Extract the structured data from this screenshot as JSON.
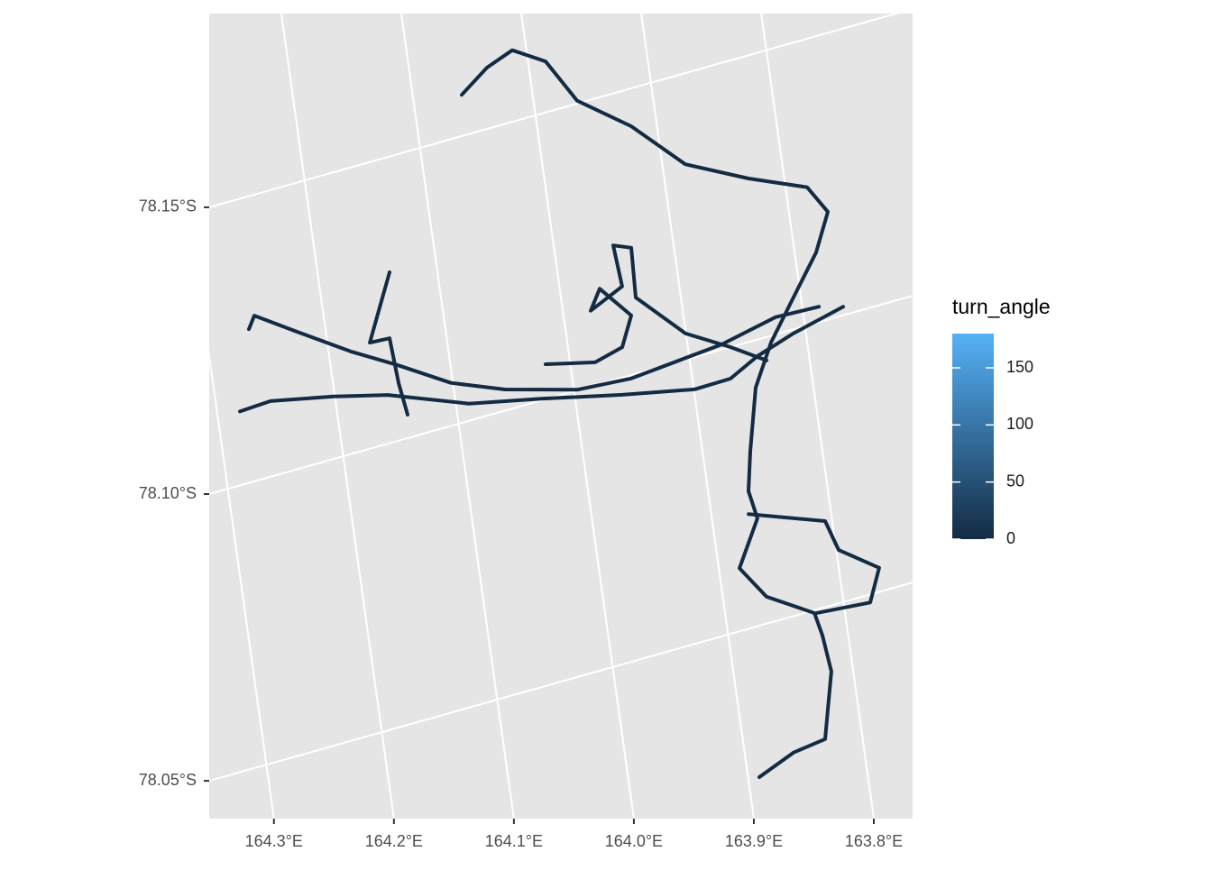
{
  "chart_data": {
    "type": "track",
    "panel_color": "#e5e5e5",
    "grid": true,
    "xticks": [
      {
        "value": 164.3,
        "label": "164.3°E"
      },
      {
        "value": 164.2,
        "label": "164.2°E"
      },
      {
        "value": 164.1,
        "label": "164.1°E"
      },
      {
        "value": 164.0,
        "label": "164.0°E"
      },
      {
        "value": 163.9,
        "label": "163.9°E"
      },
      {
        "value": 163.8,
        "label": "163.8°E"
      }
    ],
    "yticks": [
      {
        "value": -78.15,
        "label": "78.15°S"
      },
      {
        "value": -78.1,
        "label": "78.10°S"
      },
      {
        "value": -78.05,
        "label": "78.05°S"
      }
    ],
    "series": [
      {
        "color": "#132B43",
        "x": [
          164.0591,
          164.0349,
          164.0118,
          163.9853,
          163.9636,
          163.9215,
          163.8808,
          163.8298,
          163.782,
          163.7676,
          163.7821,
          163.8061,
          163.8302,
          163.8482,
          163.8601,
          163.8663,
          163.862,
          163.8828,
          163.8636,
          163.8256,
          163.8215,
          163.8182,
          163.8313,
          163.8592,
          163.8906
        ],
        "y": [
          -78.1572,
          -78.1607,
          -78.1625,
          -78.1589,
          -78.1505,
          -78.1434,
          -78.1341,
          -78.1285,
          -78.1241,
          -78.1188,
          -78.1123,
          -78.1056,
          -78.0988,
          -78.0917,
          -78.0809,
          -78.074,
          -78.0688,
          -78.061,
          -78.0547,
          -78.0495,
          -78.0452,
          -78.0385,
          -78.027,
          -78.0262,
          -78.0236
        ]
      },
      {
        "color": "#132B43",
        "x": [
          164.2809,
          164.2542,
          164.201,
          164.1557,
          164.0891,
          164.0284,
          163.9603,
          163.8995,
          163.8682,
          163.843,
          163.8103,
          163.7659
        ],
        "y": [
          -78.1129,
          -78.1132,
          -78.1109,
          -78.1085,
          -78.103,
          -78.1003,
          -78.097,
          -78.0944,
          -78.0945,
          -78.0971,
          -78.0993,
          -78.1015
        ]
      },
      {
        "color": "#132B43",
        "x": [
          164.2638,
          164.2577,
          164.2235,
          164.1807,
          164.1447,
          164.1017,
          164.0574,
          163.9972,
          163.9509,
          163.8717,
          163.8235,
          163.7861
        ],
        "y": [
          -78.1268,
          -78.1289,
          -78.1239,
          -78.1178,
          -78.1133,
          -78.1075,
          -78.1037,
          -78.1001,
          -78.0994,
          -78.1009,
          -78.103,
          -78.1027
        ]
      },
      {
        "color": "#132B43",
        "x": [
          164.0206,
          163.9791,
          163.9547,
          163.9435,
          163.9667,
          163.9768,
          163.9477,
          163.9504,
          163.9356,
          163.9377,
          163.9005,
          163.8645,
          163.836
        ],
        "y": [
          -78.1061,
          -78.104,
          -78.1053,
          -78.1104,
          -78.1166,
          -78.1132,
          -78.1159,
          -78.1235,
          -78.1222,
          -78.1133,
          -78.1046,
          -78.1,
          -78.0959
        ]
      },
      {
        "color": "#132B43",
        "x": [
          164.1399,
          164.1535,
          164.1646,
          164.1476,
          164.1453,
          164.1415
        ],
        "y": [
          -78.1298,
          -78.1236,
          -78.1185,
          -78.1183,
          -78.11,
          -78.1041
        ]
      },
      {
        "color": "#132B43",
        "x": [
          163.8689,
          163.8059,
          163.798,
          163.7663,
          163.7778,
          163.8241
        ],
        "y": [
          -78.07,
          -78.065,
          -78.0593,
          -78.0542,
          -78.0486,
          -78.0494
        ]
      }
    ],
    "legend": {
      "title": "turn_angle",
      "lim": [
        0,
        180
      ],
      "ticks": [
        0,
        50,
        100,
        150
      ],
      "colors": [
        "#132B43",
        "#56B1F7"
      ]
    }
  }
}
